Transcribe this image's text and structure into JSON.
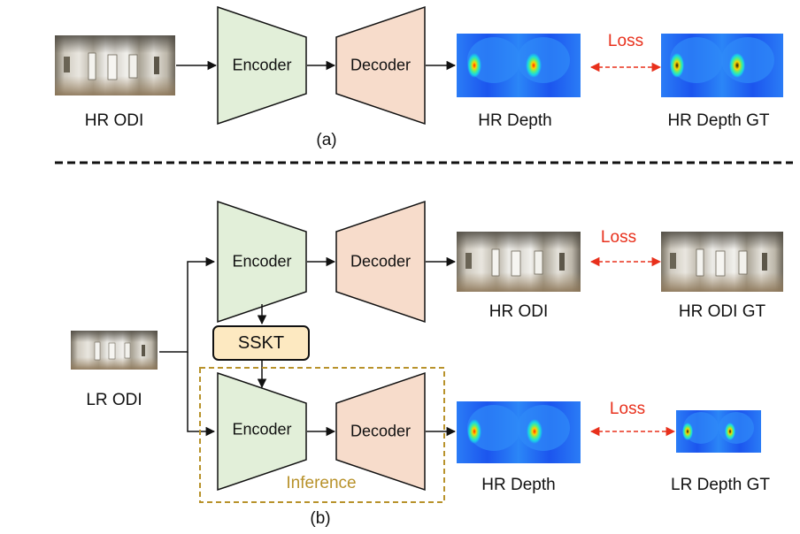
{
  "panel_a": {
    "input_label": "HR ODI",
    "encoder_label": "Encoder",
    "decoder_label": "Decoder",
    "output_label": "HR Depth",
    "gt_label": "HR Depth GT",
    "loss_label": "Loss",
    "caption": "(a)"
  },
  "panel_b": {
    "input_label": "LR ODI",
    "top": {
      "encoder_label": "Encoder",
      "decoder_label": "Decoder",
      "output_label": "HR ODI",
      "gt_label": "HR ODI GT",
      "loss_label": "Loss"
    },
    "module_label": "SSKT",
    "bottom": {
      "encoder_label": "Encoder",
      "decoder_label": "Decoder",
      "output_label": "HR Depth",
      "gt_label": "LR Depth GT",
      "loss_label": "Loss"
    },
    "inference_label": "Inference",
    "caption": "(b)"
  },
  "colors": {
    "encoder_fill": "#e2efd9",
    "decoder_fill": "#f7dccb",
    "sskt_fill": "#fde9c1",
    "loss_color": "#e8301c",
    "inference_color": "#b8922b",
    "depth_background": "#1a5ef0"
  }
}
